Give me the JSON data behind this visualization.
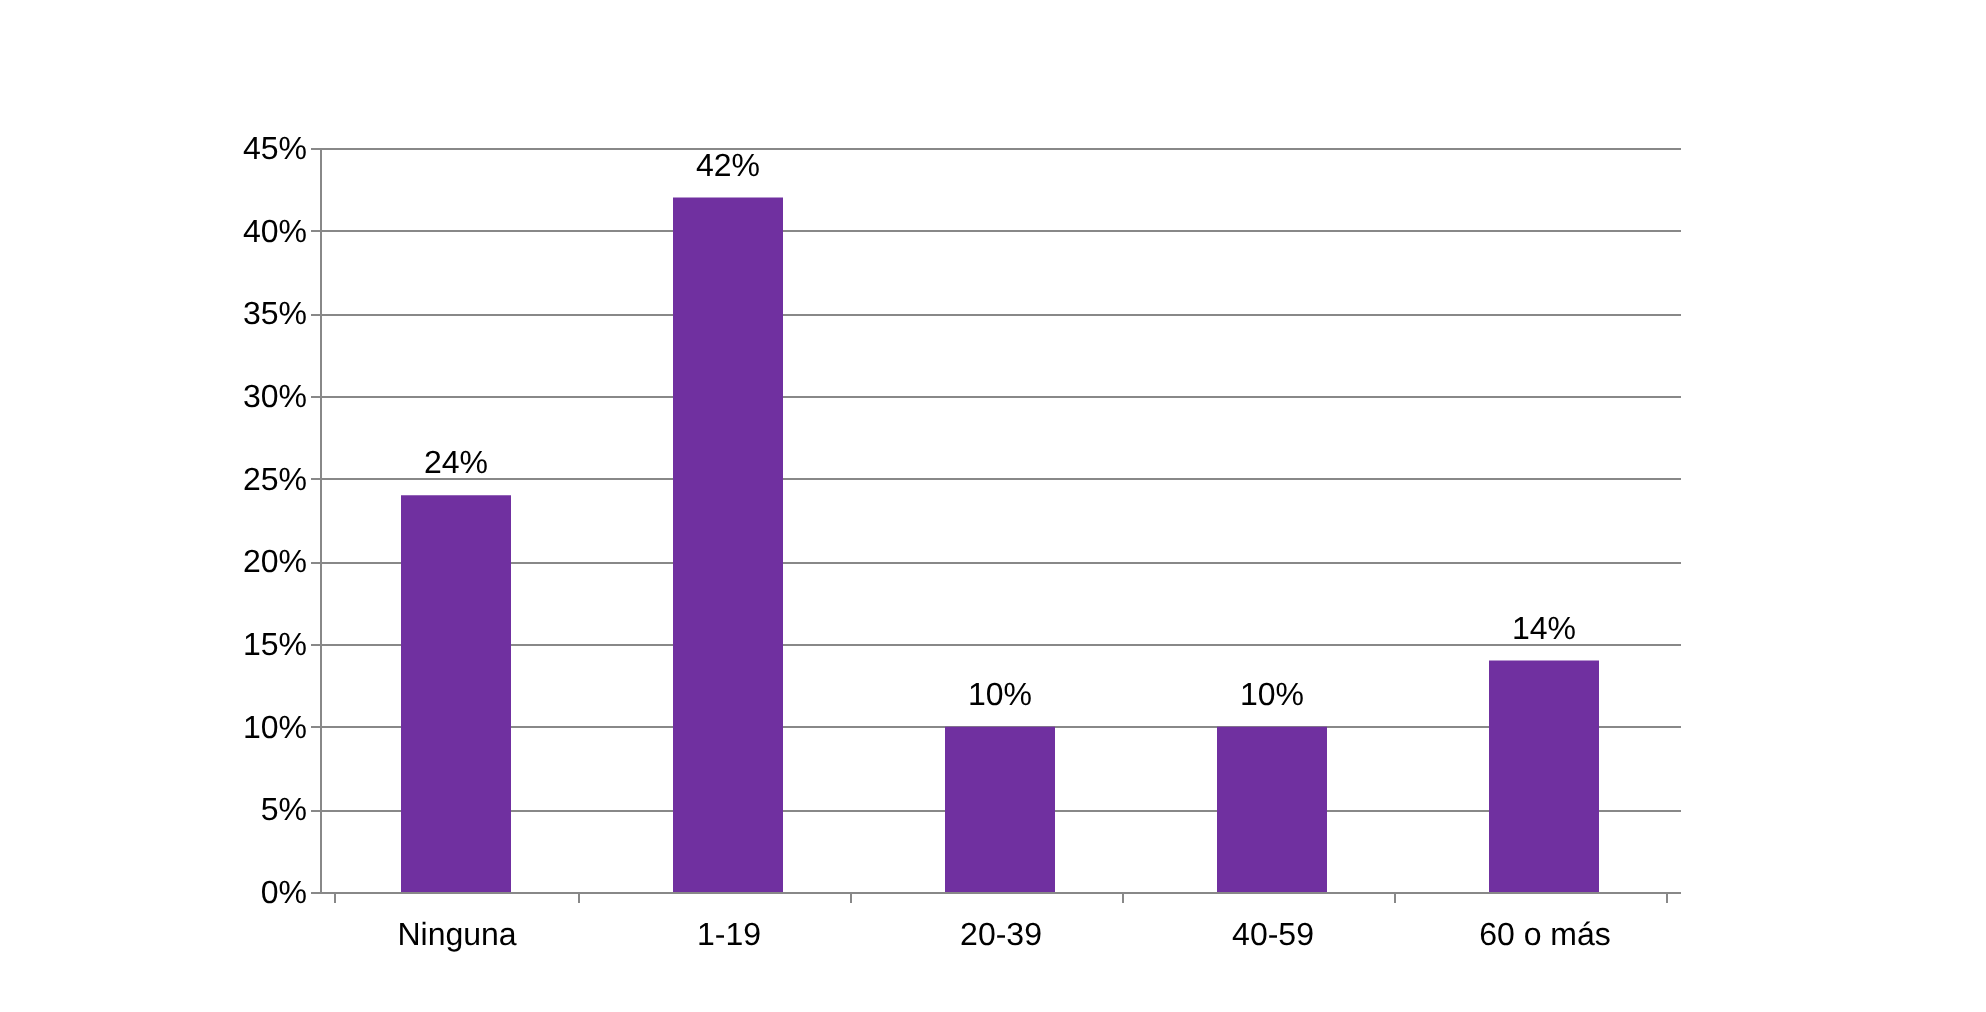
{
  "chart_data": {
    "type": "bar",
    "categories": [
      "Ninguna",
      "1-19",
      "20-39",
      "40-59",
      "60 o más"
    ],
    "values": [
      24,
      42,
      10,
      10,
      14
    ],
    "value_labels": [
      "24%",
      "42%",
      "10%",
      "10%",
      "14%"
    ],
    "color": "#7030a0",
    "ylim": [
      0,
      45
    ],
    "yticks": [
      {
        "value": 0,
        "label": "0%"
      },
      {
        "value": 5,
        "label": "5%"
      },
      {
        "value": 10,
        "label": "10%"
      },
      {
        "value": 15,
        "label": "15%"
      },
      {
        "value": 20,
        "label": "20%"
      },
      {
        "value": 25,
        "label": "25%"
      },
      {
        "value": 30,
        "label": "30%"
      },
      {
        "value": 35,
        "label": "35%"
      },
      {
        "value": 40,
        "label": "40%"
      },
      {
        "value": 45,
        "label": "45%"
      }
    ],
    "grid": "y"
  }
}
